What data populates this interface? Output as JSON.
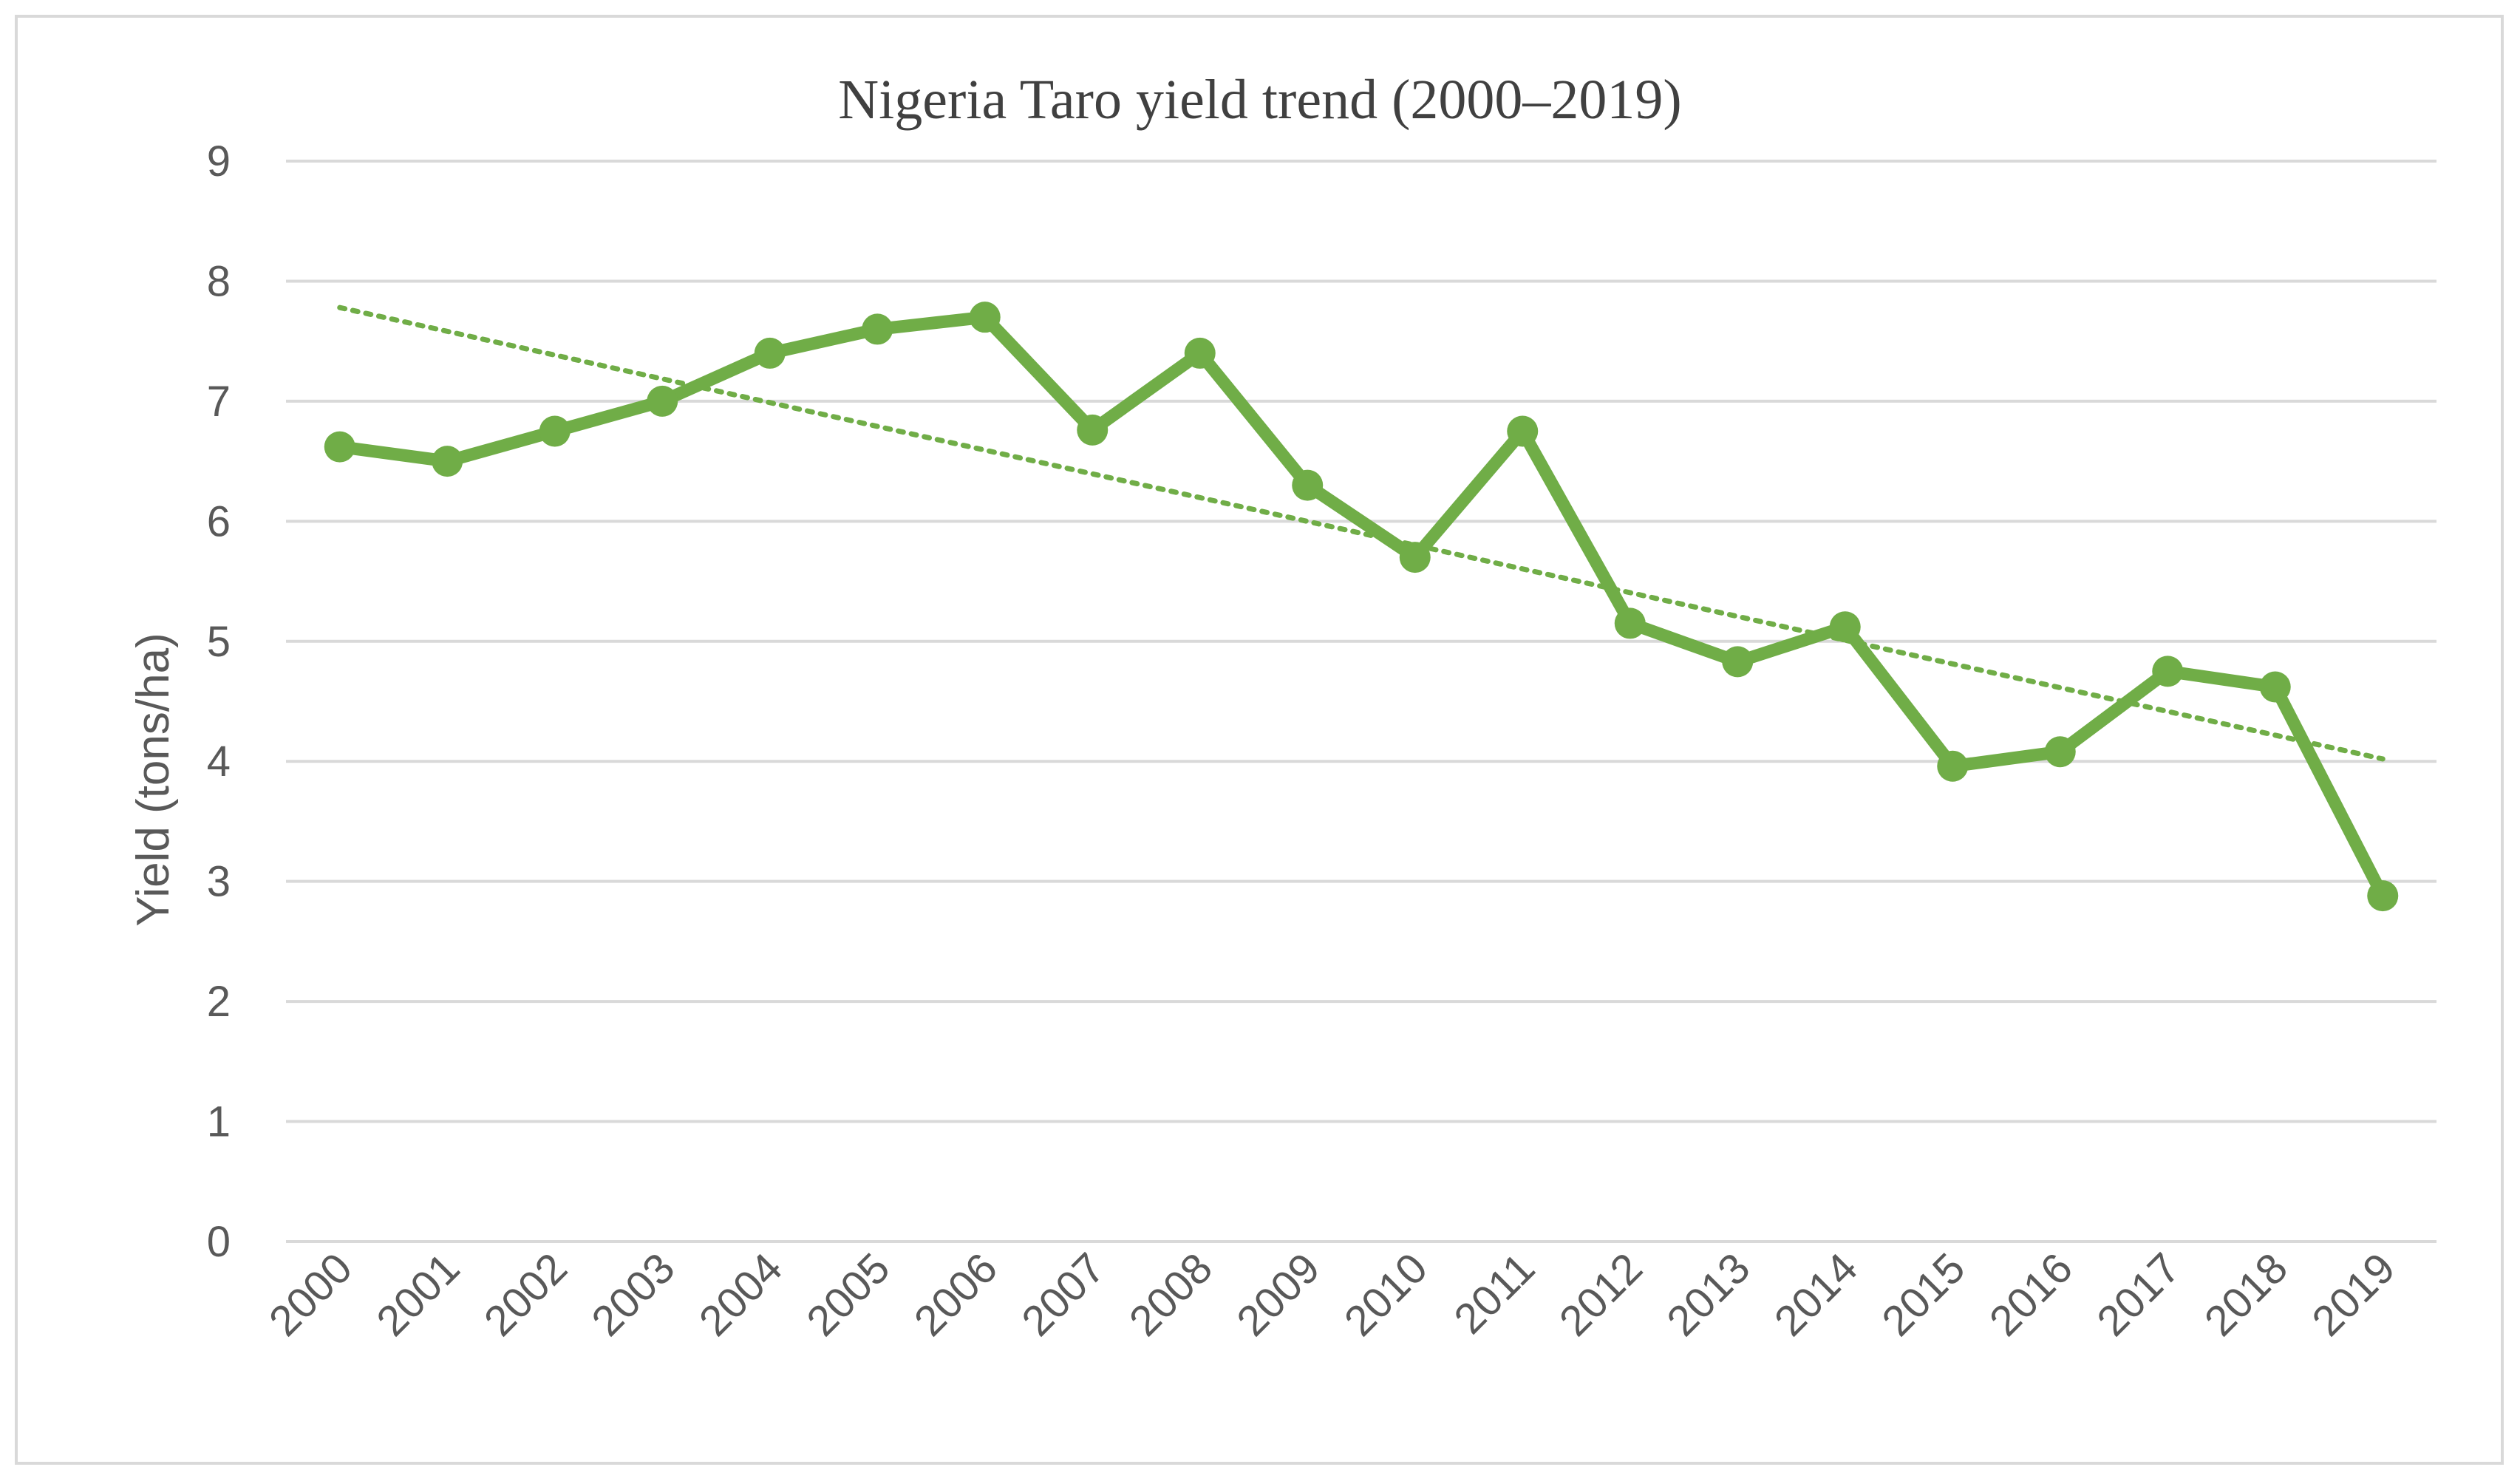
{
  "chart_data": {
    "type": "line",
    "title": "Nigeria Taro yield trend (2000–2019)",
    "xlabel": "",
    "ylabel": "Yield (tons/ha)",
    "ylim": [
      0,
      9
    ],
    "yticks": [
      "0",
      "1",
      "2",
      "3",
      "4",
      "5",
      "6",
      "7",
      "8",
      "9"
    ],
    "grid": true,
    "legend": "none",
    "categories": [
      "2000",
      "2001",
      "2002",
      "2003",
      "2004",
      "2005",
      "2006",
      "2007",
      "2008",
      "2009",
      "2010",
      "2011",
      "2012",
      "2013",
      "2014",
      "2015",
      "2016",
      "2017",
      "2018",
      "2019"
    ],
    "series": [
      {
        "name": "Yield",
        "values": [
          6.62,
          6.5,
          6.75,
          7.0,
          7.4,
          7.6,
          7.7,
          6.76,
          7.4,
          6.3,
          5.7,
          6.75,
          5.15,
          4.83,
          5.12,
          3.96,
          4.08,
          4.75,
          4.62,
          2.88
        ],
        "color": "#70ad47"
      }
    ],
    "trendline": {
      "type": "linear",
      "style": "dotted",
      "start": 7.78,
      "end": 4.02,
      "color": "#70ad47"
    }
  }
}
